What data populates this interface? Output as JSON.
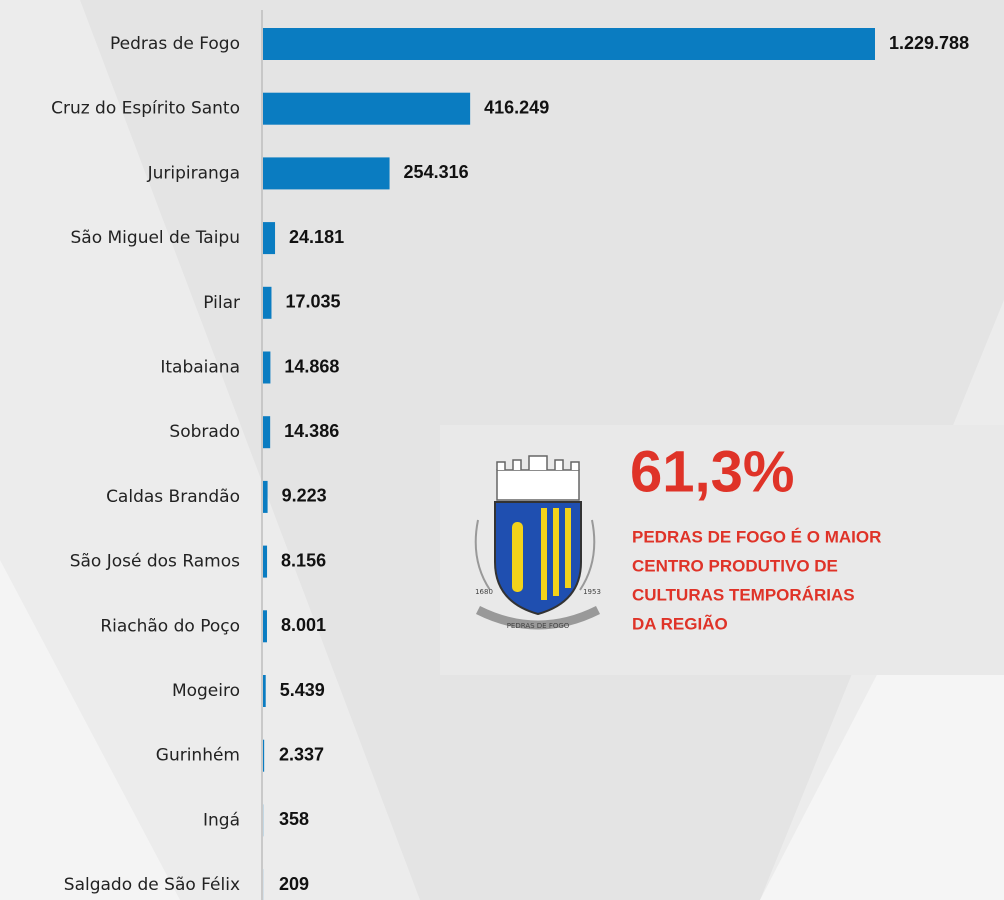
{
  "chart_data": {
    "type": "bar",
    "orientation": "horizontal",
    "color": "#0a7cc1",
    "categories": [
      "Pedras de Fogo",
      "Cruz do Espírito Santo",
      "Juripiranga",
      "São Miguel de Taipu",
      "Pilar",
      "Itabaiana",
      "Sobrado",
      "Caldas Brandão",
      "São José dos Ramos",
      "Riachão do Poço",
      "Mogeiro",
      "Gurinhém",
      "Ingá",
      "Salgado de São Félix"
    ],
    "values": [
      1229788,
      416249,
      254316,
      24181,
      17035,
      14868,
      14386,
      9223,
      8156,
      8001,
      5439,
      2337,
      358,
      209
    ],
    "value_labels": [
      "1.229.788",
      "416.249",
      "254.316",
      "24.181",
      "17.035",
      "14.868",
      "14.386",
      "9.223",
      "8.156",
      "8.001",
      "5.439",
      "2.337",
      "358",
      "209"
    ],
    "annotation": {
      "headline": "61,3%",
      "lines": [
        "PEDRAS DE FOGO É O MAIOR",
        "CENTRO PRODUTIVO DE",
        "CULTURAS TEMPORÁRIAS",
        "DA REGIÃO"
      ],
      "color": "#df3328"
    },
    "logo": {
      "ribbon": "PEDRAS DE FOGO",
      "left_year": "1680",
      "right_year": "1953"
    }
  }
}
